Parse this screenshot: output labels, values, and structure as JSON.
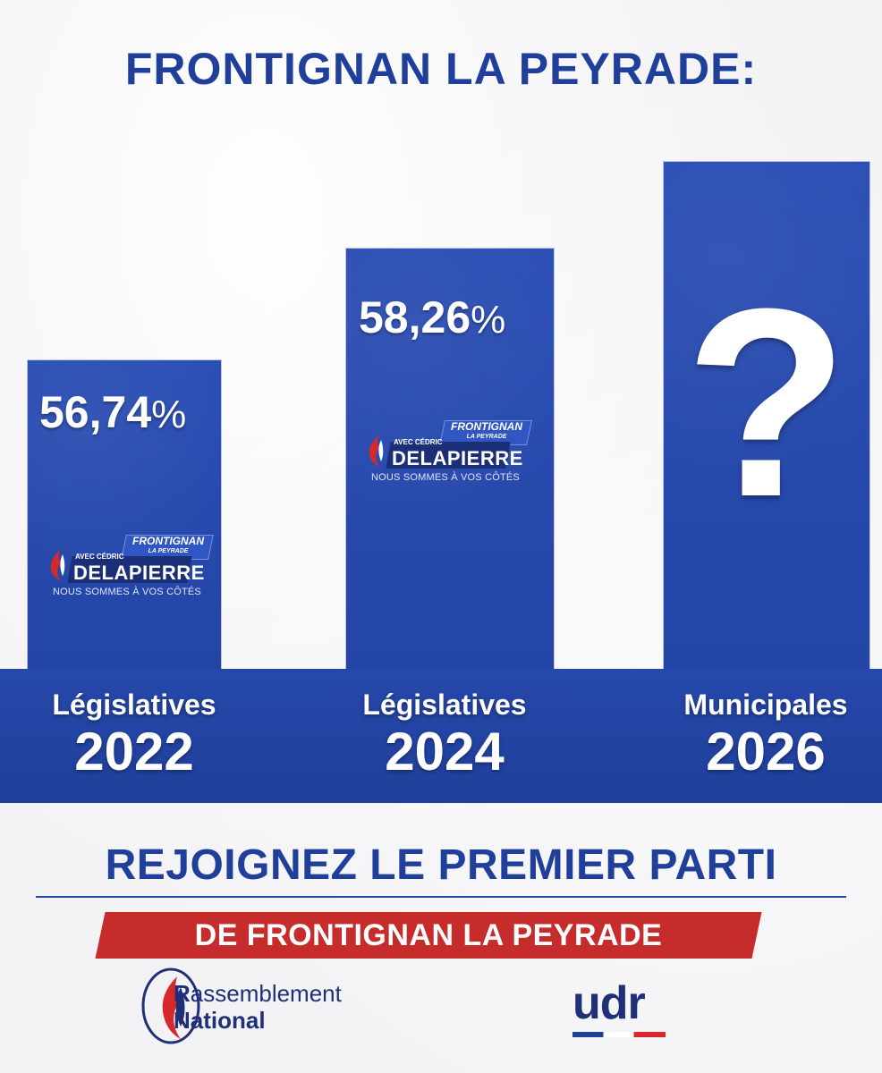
{
  "title": "FRONTIGNAN LA PEYRADE:",
  "chart_data": {
    "type": "bar",
    "categories": [
      "Législatives 2022",
      "Législatives 2024",
      "Municipales 2026"
    ],
    "values": [
      56.74,
      58.26,
      null
    ],
    "value_labels": [
      "56,74",
      "58,26",
      "?"
    ],
    "unit": "%",
    "colors": {
      "bar": "#2446a8",
      "band": "#1f3f9a",
      "text": "#ffffff",
      "accent_red": "#c72c2c"
    }
  },
  "categories_display": [
    {
      "type": "Législatives",
      "year": "2022"
    },
    {
      "type": "Législatives",
      "year": "2024"
    },
    {
      "type": "Municipales",
      "year": "2026"
    }
  ],
  "bar_logo": {
    "tag_line1": "FRONTIGNAN",
    "tag_line2": "LA PEYRADE",
    "avec": "AVEC CÉDRIC",
    "name": "DELAPIERRE",
    "slogan": "NOUS SOMMES À VOS CÔTÉS"
  },
  "question_mark": "?",
  "cta": {
    "line1": "REJOIGNEZ LE PREMIER PARTI",
    "line2": "DE FRONTIGNAN LA PEYRADE"
  },
  "footer": {
    "rn_line1_initial": "R",
    "rn_line1_rest": "assemblement",
    "rn_line2": "National",
    "udr": "udr"
  }
}
